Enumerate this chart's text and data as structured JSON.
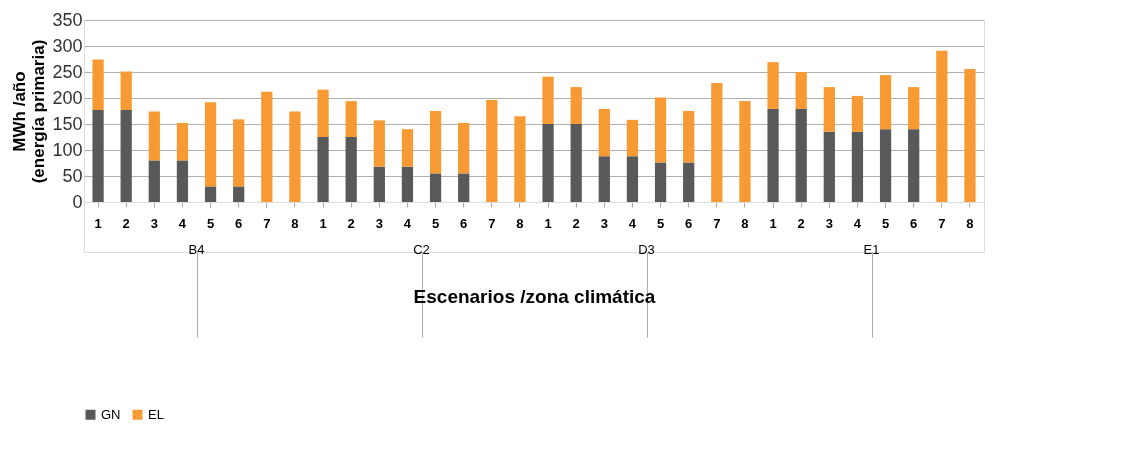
{
  "chart_data": {
    "type": "bar",
    "stacked": true,
    "ylabel": "MWh /año (energía primaria)",
    "xlabel": "Escenarios /zona climática",
    "categories": [
      "1",
      "2",
      "3",
      "4",
      "5",
      "6",
      "7",
      "8",
      "1",
      "2",
      "3",
      "4",
      "5",
      "6",
      "7",
      "8",
      "1",
      "2",
      "3",
      "4",
      "5",
      "6",
      "7",
      "8",
      "1",
      "2",
      "3",
      "4",
      "5",
      "6",
      "7",
      "8"
    ],
    "series": [
      {
        "name": "GN",
        "color": "#595959",
        "values": [
          177,
          177,
          80,
          80,
          30,
          30,
          0,
          0,
          125,
          125,
          68,
          68,
          55,
          55,
          0,
          0,
          150,
          150,
          88,
          88,
          76,
          76,
          0,
          0,
          179,
          179,
          135,
          135,
          140,
          140,
          0,
          0
        ]
      },
      {
        "name": "EL",
        "color": "#f79a33",
        "values": [
          97,
          74,
          94,
          72,
          162,
          129,
          212,
          174,
          91,
          69,
          89,
          72,
          120,
          97,
          196,
          165,
          91,
          71,
          91,
          70,
          125,
          99,
          229,
          194,
          90,
          71,
          86,
          69,
          104,
          81,
          291,
          256
        ]
      }
    ],
    "annotations": [
      "B4",
      "C2",
      "D3",
      "E1"
    ],
    "ylim": [
      0,
      350
    ],
    "yticks": [
      0,
      50,
      100,
      150,
      200,
      250,
      300,
      350
    ],
    "grid": "y",
    "legend": "bottom"
  }
}
